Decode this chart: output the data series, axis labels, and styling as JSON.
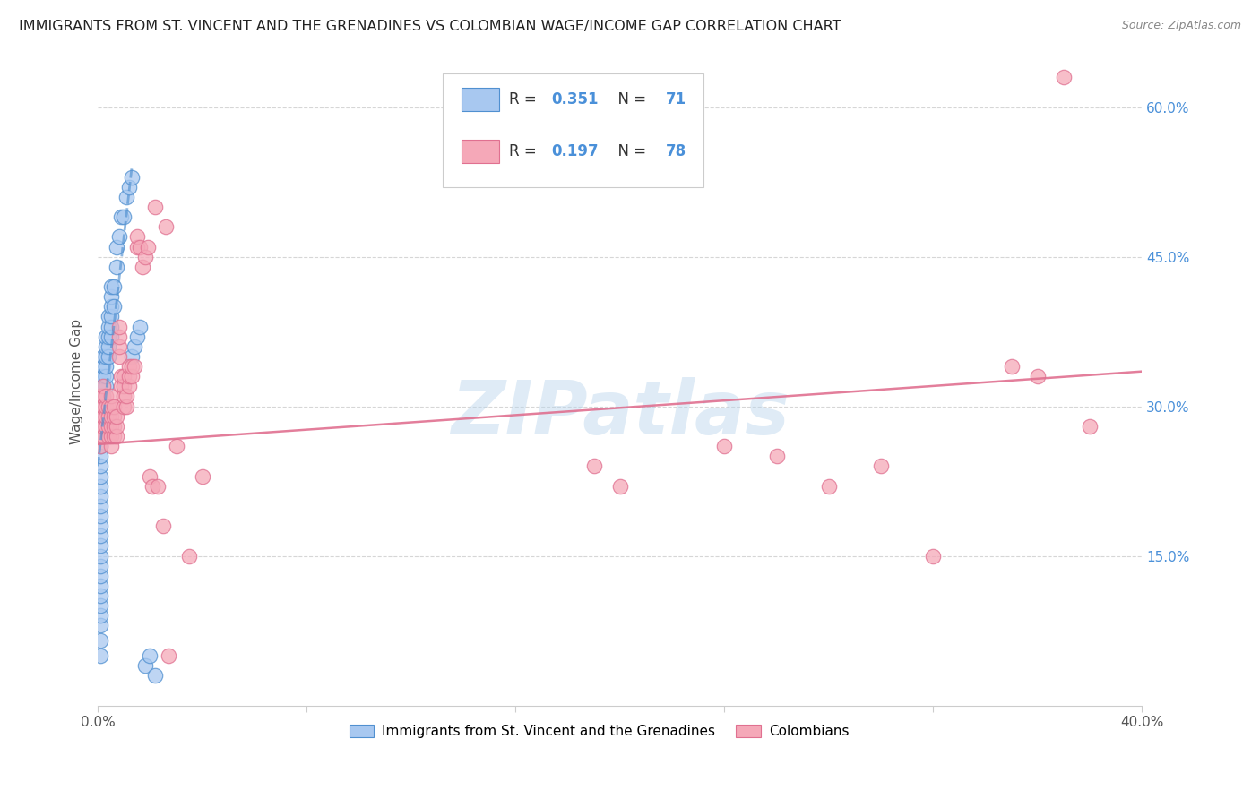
{
  "title": "IMMIGRANTS FROM ST. VINCENT AND THE GRENADINES VS COLOMBIAN WAGE/INCOME GAP CORRELATION CHART",
  "source": "Source: ZipAtlas.com",
  "ylabel": "Wage/Income Gap",
  "xlabel_blue": "Immigrants from St. Vincent and the Grenadines",
  "xlabel_pink": "Colombians",
  "xmin": 0.0,
  "xmax": 0.4,
  "ymin": 0.0,
  "ymax": 0.65,
  "yticks": [
    0.15,
    0.3,
    0.45,
    0.6
  ],
  "ytick_labels": [
    "15.0%",
    "30.0%",
    "45.0%",
    "60.0%"
  ],
  "xtick_positions": [
    0.0,
    0.08,
    0.16,
    0.24,
    0.32,
    0.4
  ],
  "xtick_labels_show": [
    "0.0%",
    "",
    "",
    "",
    "",
    "40.0%"
  ],
  "R_blue": 0.351,
  "N_blue": 71,
  "R_pink": 0.197,
  "N_pink": 78,
  "blue_color": "#a8c8f0",
  "pink_color": "#f5a8b8",
  "trendline_blue_color": "#5090d0",
  "trendline_pink_color": "#e07090",
  "axis_color": "#4a90d9",
  "watermark": "ZIPatlas",
  "blue_scatter": [
    [
      0.001,
      0.05
    ],
    [
      0.001,
      0.065
    ],
    [
      0.001,
      0.08
    ],
    [
      0.001,
      0.09
    ],
    [
      0.001,
      0.1
    ],
    [
      0.001,
      0.11
    ],
    [
      0.001,
      0.12
    ],
    [
      0.001,
      0.13
    ],
    [
      0.001,
      0.14
    ],
    [
      0.001,
      0.15
    ],
    [
      0.001,
      0.16
    ],
    [
      0.001,
      0.17
    ],
    [
      0.001,
      0.18
    ],
    [
      0.001,
      0.19
    ],
    [
      0.001,
      0.2
    ],
    [
      0.001,
      0.21
    ],
    [
      0.001,
      0.22
    ],
    [
      0.001,
      0.23
    ],
    [
      0.001,
      0.24
    ],
    [
      0.001,
      0.25
    ],
    [
      0.001,
      0.26
    ],
    [
      0.001,
      0.27
    ],
    [
      0.001,
      0.28
    ],
    [
      0.001,
      0.29
    ],
    [
      0.001,
      0.3
    ],
    [
      0.001,
      0.31
    ],
    [
      0.001,
      0.32
    ],
    [
      0.001,
      0.33
    ],
    [
      0.002,
      0.27
    ],
    [
      0.002,
      0.28
    ],
    [
      0.002,
      0.29
    ],
    [
      0.002,
      0.3
    ],
    [
      0.002,
      0.31
    ],
    [
      0.002,
      0.32
    ],
    [
      0.002,
      0.33
    ],
    [
      0.002,
      0.34
    ],
    [
      0.002,
      0.35
    ],
    [
      0.003,
      0.32
    ],
    [
      0.003,
      0.33
    ],
    [
      0.003,
      0.34
    ],
    [
      0.003,
      0.35
    ],
    [
      0.003,
      0.36
    ],
    [
      0.003,
      0.37
    ],
    [
      0.004,
      0.35
    ],
    [
      0.004,
      0.36
    ],
    [
      0.004,
      0.37
    ],
    [
      0.004,
      0.38
    ],
    [
      0.004,
      0.39
    ],
    [
      0.005,
      0.37
    ],
    [
      0.005,
      0.38
    ],
    [
      0.005,
      0.39
    ],
    [
      0.005,
      0.4
    ],
    [
      0.005,
      0.41
    ],
    [
      0.005,
      0.42
    ],
    [
      0.006,
      0.4
    ],
    [
      0.006,
      0.42
    ],
    [
      0.007,
      0.44
    ],
    [
      0.007,
      0.46
    ],
    [
      0.008,
      0.47
    ],
    [
      0.009,
      0.49
    ],
    [
      0.01,
      0.49
    ],
    [
      0.011,
      0.51
    ],
    [
      0.012,
      0.52
    ],
    [
      0.013,
      0.53
    ],
    [
      0.013,
      0.35
    ],
    [
      0.014,
      0.36
    ],
    [
      0.015,
      0.37
    ],
    [
      0.016,
      0.38
    ],
    [
      0.018,
      0.04
    ],
    [
      0.02,
      0.05
    ],
    [
      0.022,
      0.03
    ]
  ],
  "pink_scatter": [
    [
      0.001,
      0.26
    ],
    [
      0.001,
      0.27
    ],
    [
      0.001,
      0.28
    ],
    [
      0.001,
      0.29
    ],
    [
      0.001,
      0.3
    ],
    [
      0.001,
      0.31
    ],
    [
      0.002,
      0.27
    ],
    [
      0.002,
      0.28
    ],
    [
      0.002,
      0.29
    ],
    [
      0.002,
      0.3
    ],
    [
      0.002,
      0.31
    ],
    [
      0.002,
      0.32
    ],
    [
      0.003,
      0.28
    ],
    [
      0.003,
      0.29
    ],
    [
      0.003,
      0.3
    ],
    [
      0.003,
      0.31
    ],
    [
      0.004,
      0.27
    ],
    [
      0.004,
      0.28
    ],
    [
      0.004,
      0.29
    ],
    [
      0.004,
      0.3
    ],
    [
      0.005,
      0.26
    ],
    [
      0.005,
      0.27
    ],
    [
      0.005,
      0.28
    ],
    [
      0.005,
      0.29
    ],
    [
      0.005,
      0.3
    ],
    [
      0.005,
      0.31
    ],
    [
      0.006,
      0.27
    ],
    [
      0.006,
      0.28
    ],
    [
      0.006,
      0.29
    ],
    [
      0.006,
      0.3
    ],
    [
      0.007,
      0.27
    ],
    [
      0.007,
      0.28
    ],
    [
      0.007,
      0.29
    ],
    [
      0.008,
      0.35
    ],
    [
      0.008,
      0.36
    ],
    [
      0.008,
      0.37
    ],
    [
      0.008,
      0.38
    ],
    [
      0.009,
      0.32
    ],
    [
      0.009,
      0.33
    ],
    [
      0.01,
      0.3
    ],
    [
      0.01,
      0.31
    ],
    [
      0.01,
      0.32
    ],
    [
      0.01,
      0.33
    ],
    [
      0.011,
      0.3
    ],
    [
      0.011,
      0.31
    ],
    [
      0.012,
      0.32
    ],
    [
      0.012,
      0.33
    ],
    [
      0.012,
      0.34
    ],
    [
      0.013,
      0.33
    ],
    [
      0.013,
      0.34
    ],
    [
      0.014,
      0.34
    ],
    [
      0.015,
      0.46
    ],
    [
      0.015,
      0.47
    ],
    [
      0.016,
      0.46
    ],
    [
      0.017,
      0.44
    ],
    [
      0.018,
      0.45
    ],
    [
      0.019,
      0.46
    ],
    [
      0.02,
      0.23
    ],
    [
      0.021,
      0.22
    ],
    [
      0.022,
      0.5
    ],
    [
      0.023,
      0.22
    ],
    [
      0.025,
      0.18
    ],
    [
      0.026,
      0.48
    ],
    [
      0.027,
      0.05
    ],
    [
      0.03,
      0.26
    ],
    [
      0.035,
      0.15
    ],
    [
      0.04,
      0.23
    ],
    [
      0.19,
      0.24
    ],
    [
      0.2,
      0.22
    ],
    [
      0.24,
      0.26
    ],
    [
      0.26,
      0.25
    ],
    [
      0.28,
      0.22
    ],
    [
      0.3,
      0.24
    ],
    [
      0.32,
      0.15
    ],
    [
      0.35,
      0.34
    ],
    [
      0.36,
      0.33
    ],
    [
      0.37,
      0.63
    ],
    [
      0.38,
      0.28
    ]
  ],
  "blue_trend_x": [
    0.0,
    0.013
  ],
  "blue_trend_y": [
    0.24,
    0.54
  ],
  "pink_trend_x": [
    0.0,
    0.4
  ],
  "pink_trend_y": [
    0.262,
    0.335
  ]
}
